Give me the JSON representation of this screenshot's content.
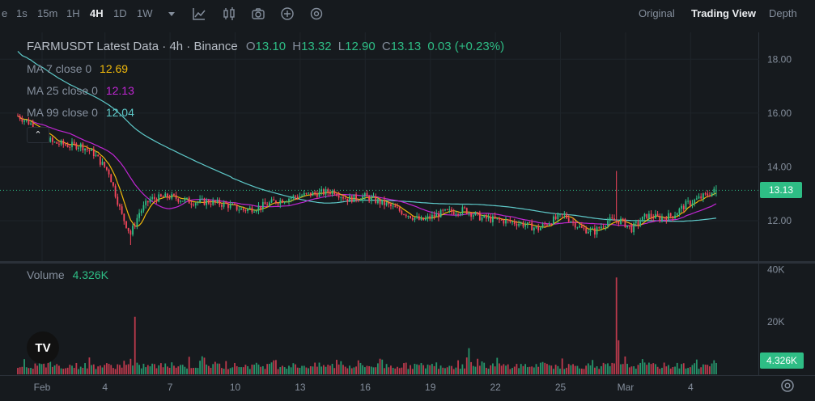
{
  "toolbar": {
    "timeframes": [
      "e",
      "1s",
      "15m",
      "1H",
      "4H",
      "1D",
      "1W"
    ],
    "active_timeframe": "4H",
    "views": [
      "Original",
      "Trading View",
      "Depth"
    ],
    "active_view": "Trading View"
  },
  "legend": {
    "symbol_line": "FARMUSDT Latest Data · 4h · Binance",
    "o_label": "O",
    "o": "13.10",
    "h_label": "H",
    "h": "13.32",
    "l_label": "L",
    "l": "12.90",
    "c_label": "C",
    "c": "13.13",
    "change": "0.03 (+0.23%)",
    "ma7_label": "MA 7 close 0",
    "ma7": "12.69",
    "ma25_label": "MA 25 close 0",
    "ma25": "12.13",
    "ma99_label": "MA 99 close 0",
    "ma99": "12.04",
    "volume_label": "Volume",
    "volume": "4.326K"
  },
  "tags": {
    "last_price": "13.13",
    "last_volume": "4.326K"
  },
  "colors": {
    "up": "#2ebd85",
    "down": "#f6465d",
    "ma7": "#f0b90b",
    "ma25": "#c026d3",
    "ma99": "#5ec9c9",
    "bg": "#161a1e"
  },
  "chart_data": {
    "type": "candlestick",
    "price_axis": {
      "ticks": [
        18.0,
        16.0,
        14.0,
        12.0
      ],
      "range": [
        10.5,
        19.0
      ]
    },
    "volume_axis": {
      "ticks": [
        "40K",
        "20K"
      ],
      "range": [
        0,
        42000
      ]
    },
    "x_ticks": [
      "Feb",
      "4",
      "7",
      "10",
      "13",
      "16",
      "19",
      "22",
      "25",
      "Mar",
      "4"
    ],
    "x_tick_positions": [
      0,
      29,
      59,
      89,
      119,
      149,
      179,
      209,
      239,
      269,
      299
    ],
    "anchors": [
      [
        0,
        15.9
      ],
      [
        8,
        15.5
      ],
      [
        16,
        14.9
      ],
      [
        24,
        14.8
      ],
      [
        29,
        14.8
      ],
      [
        35,
        14.5
      ],
      [
        42,
        13.8
      ],
      [
        48,
        12.2
      ],
      [
        52,
        11.5
      ],
      [
        56,
        12.3
      ],
      [
        61,
        12.8
      ],
      [
        70,
        12.9
      ],
      [
        80,
        12.7
      ],
      [
        88,
        12.7
      ],
      [
        96,
        12.6
      ],
      [
        104,
        12.4
      ],
      [
        111,
        12.5
      ],
      [
        118,
        12.7
      ],
      [
        128,
        12.9
      ],
      [
        136,
        13.0
      ],
      [
        146,
        13.1
      ],
      [
        152,
        12.8
      ],
      [
        160,
        12.9
      ],
      [
        170,
        12.6
      ],
      [
        178,
        12.3
      ],
      [
        186,
        12.0
      ],
      [
        196,
        12.3
      ],
      [
        206,
        12.4
      ],
      [
        214,
        12.1
      ],
      [
        224,
        12.0
      ],
      [
        232,
        11.9
      ],
      [
        240,
        11.7
      ],
      [
        246,
        12.0
      ],
      [
        252,
        12.2
      ],
      [
        260,
        11.7
      ],
      [
        266,
        11.6
      ],
      [
        272,
        12.0
      ],
      [
        278,
        12.0
      ],
      [
        283,
        11.7
      ],
      [
        290,
        12.2
      ],
      [
        296,
        12.1
      ],
      [
        302,
        12.2
      ],
      [
        308,
        12.6
      ],
      [
        316,
        12.9
      ],
      [
        322,
        13.13
      ]
    ],
    "ma7_close": 12.69,
    "ma25_close": 12.13,
    "ma99_close": 12.04,
    "last": {
      "open": 13.1,
      "high": 13.32,
      "low": 12.9,
      "close": 13.13,
      "volume": 4326
    },
    "volume_spikes": [
      {
        "bar": 54,
        "volume": 22000
      },
      {
        "bar": 276,
        "volume": 37000
      },
      {
        "bar": 277,
        "volume": 13000
      },
      {
        "bar": 208,
        "volume": 10000
      }
    ]
  }
}
